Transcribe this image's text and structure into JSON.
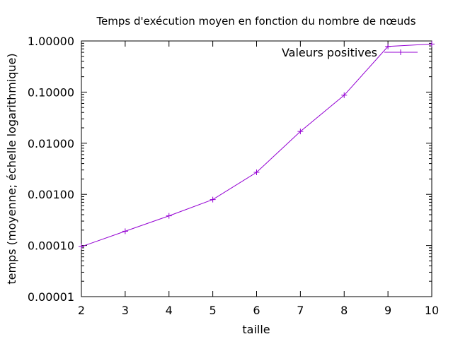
{
  "chart_data": {
    "type": "line",
    "title": "Temps d'exécution moyen en fonction du nombre de nœuds",
    "xlabel": "taille",
    "ylabel": "temps (moyenne; échelle logarithmique)",
    "xlim": [
      2,
      10
    ],
    "ylim": [
      1e-05,
      1.0
    ],
    "y_scale": "log",
    "x_ticks": [
      "2",
      "3",
      "4",
      "5",
      "6",
      "7",
      "8",
      "9",
      "10"
    ],
    "x_tick_values": [
      2,
      3,
      4,
      5,
      6,
      7,
      8,
      9,
      10
    ],
    "y_ticks": [
      "1.00000",
      "0.10000",
      "0.01000",
      "0.00100",
      "0.00010",
      "0.00001"
    ],
    "y_tick_values": [
      1.0,
      0.1,
      0.01,
      0.001,
      0.0001,
      1e-05
    ],
    "grid": false,
    "legend_position": "top-right",
    "series": [
      {
        "name": "Valeurs positives",
        "color": "#9400d3",
        "marker": "plus",
        "x": [
          2,
          3,
          4,
          5,
          6,
          7,
          8,
          9,
          10
        ],
        "y": [
          9.5e-05,
          0.00019,
          0.00038,
          0.00079,
          0.0027,
          0.017,
          0.087,
          0.78,
          0.87
        ]
      }
    ]
  }
}
